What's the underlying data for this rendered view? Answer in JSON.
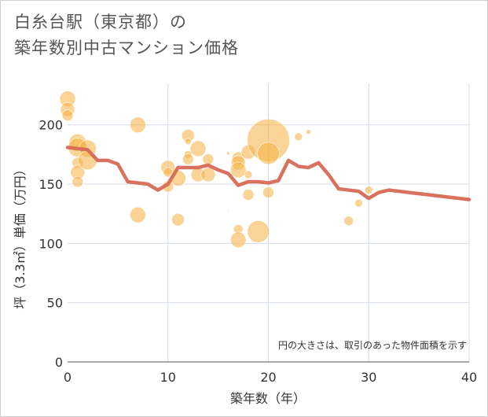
{
  "header": {
    "title_line1": "白糸台駅（東京都）の",
    "title_line2": "築年数別中古マンション価格"
  },
  "chart_data": {
    "type": "scatter",
    "title": "白糸台駅（東京都）の築年数別中古マンション価格",
    "xlabel": "築年数（年）",
    "ylabel": "坪（3.3㎡）単価（万円）",
    "xlim": [
      0,
      40
    ],
    "ylim": [
      0,
      235
    ],
    "xticks": [
      0,
      10,
      20,
      30,
      40
    ],
    "yticks": [
      0,
      50,
      100,
      150,
      200
    ],
    "annotation": "円の大きさは、取引のあった物件面積を示す",
    "colors": {
      "bubble": "#f5b041",
      "line": "#d66a55",
      "grid": "#d7dee8"
    },
    "bubbles": [
      {
        "x": 0,
        "y": 222,
        "r": 10
      },
      {
        "x": 0,
        "y": 213,
        "r": 9
      },
      {
        "x": 0,
        "y": 208,
        "r": 7
      },
      {
        "x": 1,
        "y": 185,
        "r": 11
      },
      {
        "x": 1,
        "y": 181,
        "r": 12
      },
      {
        "x": 1,
        "y": 168,
        "r": 7
      },
      {
        "x": 1,
        "y": 160,
        "r": 9
      },
      {
        "x": 1,
        "y": 152,
        "r": 7
      },
      {
        "x": 2,
        "y": 180,
        "r": 11
      },
      {
        "x": 2,
        "y": 170,
        "r": 12
      },
      {
        "x": 7,
        "y": 200,
        "r": 10
      },
      {
        "x": 7,
        "y": 124,
        "r": 10
      },
      {
        "x": 10,
        "y": 164,
        "r": 9
      },
      {
        "x": 10,
        "y": 160,
        "r": 6
      },
      {
        "x": 10,
        "y": 148,
        "r": 7
      },
      {
        "x": 11,
        "y": 155,
        "r": 10
      },
      {
        "x": 11,
        "y": 120,
        "r": 8
      },
      {
        "x": 12,
        "y": 191,
        "r": 8
      },
      {
        "x": 12,
        "y": 186,
        "r": 4
      },
      {
        "x": 12,
        "y": 175,
        "r": 5
      },
      {
        "x": 12,
        "y": 171,
        "r": 7
      },
      {
        "x": 13,
        "y": 180,
        "r": 10
      },
      {
        "x": 13,
        "y": 158,
        "r": 9
      },
      {
        "x": 14,
        "y": 171,
        "r": 7
      },
      {
        "x": 14,
        "y": 158,
        "r": 9
      },
      {
        "x": 16,
        "y": 176,
        "r": 2
      },
      {
        "x": 16,
        "y": 127,
        "r": 1
      },
      {
        "x": 17,
        "y": 172,
        "r": 8
      },
      {
        "x": 17,
        "y": 168,
        "r": 9
      },
      {
        "x": 17,
        "y": 162,
        "r": 10
      },
      {
        "x": 17,
        "y": 112,
        "r": 6
      },
      {
        "x": 17,
        "y": 103,
        "r": 10
      },
      {
        "x": 18,
        "y": 177,
        "r": 9
      },
      {
        "x": 18,
        "y": 158,
        "r": 5
      },
      {
        "x": 18,
        "y": 141,
        "r": 7
      },
      {
        "x": 19,
        "y": 110,
        "r": 14
      },
      {
        "x": 20,
        "y": 187,
        "r": 27
      },
      {
        "x": 20,
        "y": 176,
        "r": 14
      },
      {
        "x": 20,
        "y": 143,
        "r": 7
      },
      {
        "x": 23,
        "y": 190,
        "r": 5
      },
      {
        "x": 24,
        "y": 194,
        "r": 3
      },
      {
        "x": 28,
        "y": 119,
        "r": 6
      },
      {
        "x": 29,
        "y": 134,
        "r": 5
      },
      {
        "x": 30,
        "y": 145,
        "r": 5
      }
    ],
    "line": {
      "x": [
        0,
        1,
        2,
        3,
        4,
        5,
        6,
        7,
        8,
        9,
        10,
        11,
        12,
        13,
        14,
        15,
        16,
        17,
        18,
        19,
        20,
        21,
        22,
        23,
        24,
        25,
        26,
        27,
        28,
        29,
        30,
        31,
        32,
        33,
        34,
        35,
        36,
        37,
        38,
        39,
        40
      ],
      "y": [
        181,
        180,
        179,
        170,
        170,
        167,
        152,
        151,
        150,
        145,
        150,
        164,
        164,
        164,
        166,
        162,
        159,
        149,
        152,
        152,
        151,
        153,
        170,
        165,
        164,
        168,
        158,
        146,
        145,
        144,
        138,
        143,
        145,
        144,
        143,
        142,
        141,
        140,
        139,
        138,
        137
      ]
    }
  }
}
